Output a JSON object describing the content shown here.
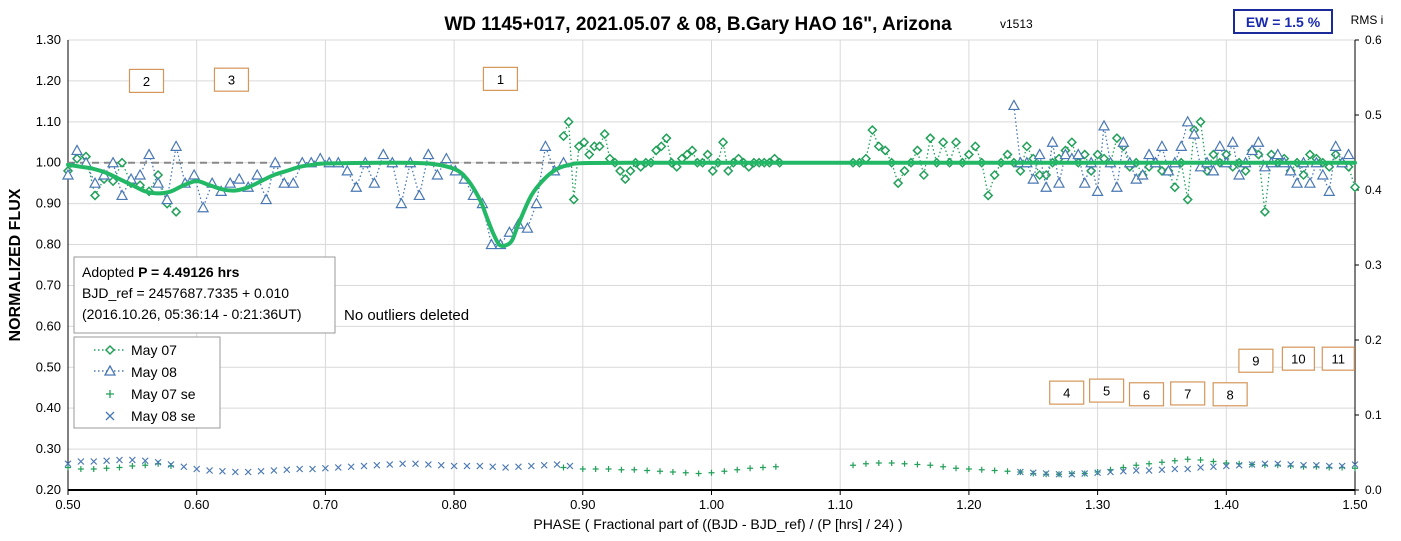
{
  "chart_data": {
    "type": "scatter",
    "title": "WD 1145+017, 2021.05.07 & 08, B.Gary HAO 16\", Arizona",
    "version": "v1513",
    "xlabel": "PHASE ( Fractional part of ((BJD - BJD_ref) / (P [hrs] / 24) )",
    "ylabel": "NORMALIZED FLUX",
    "y2label": "RMS i",
    "xlim": [
      0.5,
      1.5
    ],
    "ylim": [
      0.2,
      1.3
    ],
    "y2lim": [
      0.0,
      0.6
    ],
    "xticks": [
      "0.50",
      "0.60",
      "0.70",
      "0.80",
      "0.90",
      "1.00",
      "1.10",
      "1.20",
      "1.30",
      "1.40",
      "1.50"
    ],
    "yticks": [
      "0.20",
      "0.30",
      "0.40",
      "0.50",
      "0.60",
      "0.70",
      "0.80",
      "0.90",
      "1.00",
      "1.10",
      "1.20",
      "1.30"
    ],
    "y2ticks": [
      "0.0",
      "0.1",
      "0.2",
      "0.3",
      "0.4",
      "0.5",
      "0.6"
    ],
    "grid": true,
    "ew_box": "EW = 1.5 %",
    "info_box": {
      "line1_prefix": "Adopted ",
      "line1_bold": "P = 4.49126 hrs",
      "line2": "BJD_ref = 2457687.7335 + 0.010",
      "line3": "(2016.10.26, 05:36:14 - 0:21:36UT)"
    },
    "note": "No outliers deleted",
    "dip_labels": [
      {
        "label": "1",
        "x": 0.836,
        "y": 1.205
      },
      {
        "label": "2",
        "x": 0.561,
        "y": 1.2
      },
      {
        "label": "3",
        "x": 0.627,
        "y": 1.203
      },
      {
        "label": "4",
        "x": 1.276,
        "y": 0.438
      },
      {
        "label": "5",
        "x": 1.307,
        "y": 0.443
      },
      {
        "label": "6",
        "x": 1.338,
        "y": 0.434
      },
      {
        "label": "7",
        "x": 1.37,
        "y": 0.436
      },
      {
        "label": "8",
        "x": 1.403,
        "y": 0.434
      },
      {
        "label": "9",
        "x": 1.423,
        "y": 0.516
      },
      {
        "label": "10",
        "x": 1.456,
        "y": 0.521
      },
      {
        "label": "11",
        "x": 1.487,
        "y": 0.521
      }
    ],
    "legend": {
      "placement": "left",
      "entries": [
        "May 07",
        "May 08",
        "May 07 se",
        "May 08 se"
      ]
    },
    "colors": {
      "may07": "#22a05a",
      "may08": "#4a78b4",
      "model": "#22b866",
      "reference": "#888888",
      "label_box": "#d4965a",
      "ew_border": "#1a2a9a",
      "ew_text": "#1a2ab0"
    },
    "model_curve": {
      "name": "",
      "x": [
        0.5,
        0.51,
        0.52,
        0.53,
        0.54,
        0.55,
        0.56,
        0.57,
        0.58,
        0.59,
        0.6,
        0.61,
        0.62,
        0.63,
        0.64,
        0.65,
        0.66,
        0.67,
        0.68,
        0.69,
        0.7,
        0.75,
        0.78,
        0.8,
        0.81,
        0.82,
        0.825,
        0.83,
        0.835,
        0.84,
        0.845,
        0.85,
        0.86,
        0.87,
        0.88,
        0.89,
        0.9,
        0.95,
        1.0,
        1.1,
        1.2,
        1.3,
        1.4,
        1.5
      ],
      "y": [
        0.995,
        0.99,
        0.985,
        0.975,
        0.96,
        0.945,
        0.93,
        0.925,
        0.93,
        0.945,
        0.955,
        0.945,
        0.935,
        0.932,
        0.94,
        0.955,
        0.97,
        0.98,
        0.99,
        0.995,
        0.998,
        1.0,
        0.998,
        0.985,
        0.96,
        0.91,
        0.87,
        0.83,
        0.8,
        0.798,
        0.81,
        0.85,
        0.92,
        0.96,
        0.985,
        0.995,
        0.999,
        1.0,
        1.0,
        1.0,
        1.0,
        1.0,
        1.0,
        1.0
      ]
    },
    "reference_line": {
      "y": 1.0,
      "x": [
        0.5,
        1.5
      ]
    },
    "series": [
      {
        "name": "May 07",
        "marker": "diamond",
        "x": [
          0.5,
          0.507,
          0.514,
          0.521,
          0.528,
          0.535,
          0.542,
          0.549,
          0.556,
          0.563,
          0.57,
          0.577,
          0.584,
          0.885,
          0.889,
          0.893,
          0.897,
          0.901,
          0.905,
          0.909,
          0.913,
          0.917,
          0.921,
          0.925,
          0.929,
          0.933,
          0.937,
          0.941,
          0.945,
          0.949,
          0.953,
          0.957,
          0.961,
          0.965,
          0.969,
          0.973,
          0.977,
          0.981,
          0.985,
          0.989,
          0.993,
          0.997,
          1.001,
          1.005,
          1.009,
          1.013,
          1.017,
          1.021,
          1.025,
          1.029,
          1.033,
          1.037,
          1.041,
          1.045,
          1.049,
          1.053,
          1.11,
          1.115,
          1.12,
          1.125,
          1.13,
          1.135,
          1.14,
          1.145,
          1.15,
          1.155,
          1.16,
          1.165,
          1.17,
          1.175,
          1.18,
          1.185,
          1.19,
          1.195,
          1.2,
          1.205,
          1.21,
          1.215,
          1.22,
          1.225,
          1.23,
          1.235,
          1.24,
          1.245,
          1.25,
          1.255,
          1.26,
          1.265,
          1.27,
          1.275,
          1.28,
          1.285,
          1.29,
          1.295,
          1.3,
          1.305,
          1.31,
          1.315,
          1.32,
          1.325,
          1.33,
          1.335,
          1.34,
          1.345,
          1.35,
          1.355,
          1.36,
          1.365,
          1.37,
          1.375,
          1.38,
          1.385,
          1.39,
          1.395,
          1.4,
          1.405,
          1.41,
          1.415,
          1.42,
          1.425,
          1.43,
          1.435,
          1.44,
          1.445,
          1.45,
          1.455,
          1.46,
          1.465,
          1.47,
          1.475,
          1.48,
          1.485,
          1.49,
          1.495,
          1.5
        ],
        "y": [
          0.98,
          1.01,
          1.015,
          0.92,
          0.96,
          0.955,
          1.0,
          0.95,
          0.945,
          0.93,
          0.97,
          0.9,
          0.88,
          1.065,
          1.1,
          0.91,
          1.04,
          1.05,
          1.02,
          1.04,
          1.04,
          1.07,
          1.01,
          1.0,
          0.98,
          0.96,
          0.98,
          1.0,
          0.99,
          1.0,
          1.0,
          1.03,
          1.04,
          1.06,
          1.0,
          0.99,
          1.01,
          1.02,
          1.03,
          1.0,
          1.0,
          1.02,
          0.98,
          1.0,
          1.05,
          0.98,
          1.0,
          1.01,
          1.0,
          0.99,
          1.0,
          1.0,
          1.0,
          1.0,
          1.01,
          1.0,
          1.0,
          1.0,
          1.01,
          1.08,
          1.04,
          1.03,
          1.0,
          0.95,
          0.98,
          1.0,
          1.03,
          0.97,
          1.06,
          1.0,
          1.05,
          1.0,
          1.05,
          1.0,
          1.02,
          1.04,
          1.0,
          0.92,
          0.97,
          1.0,
          1.02,
          1.0,
          0.98,
          1.04,
          1.01,
          0.97,
          0.97,
          1.0,
          1.01,
          1.03,
          1.05,
          1.0,
          1.02,
          0.98,
          1.02,
          1.01,
          1.0,
          1.06,
          1.04,
          0.99,
          1.0,
          0.97,
          0.99,
          1.0,
          0.98,
          0.98,
          0.94,
          1.0,
          0.91,
          1.08,
          1.1,
          0.98,
          1.02,
          1.0,
          1.02,
          0.99,
          1.0,
          0.98,
          1.03,
          1.02,
          0.88,
          1.02,
          1.0,
          1.01,
          0.98,
          1.0,
          0.97,
          1.02,
          1.01,
          1.0,
          0.99,
          1.02,
          1.0,
          0.99,
          0.94
        ]
      },
      {
        "name": "May 08",
        "marker": "triangle",
        "x": [
          0.5,
          0.507,
          0.514,
          0.521,
          0.528,
          0.535,
          0.542,
          0.549,
          0.556,
          0.563,
          0.57,
          0.577,
          0.584,
          0.591,
          0.598,
          0.605,
          0.612,
          0.619,
          0.626,
          0.633,
          0.64,
          0.647,
          0.654,
          0.661,
          0.668,
          0.675,
          0.682,
          0.689,
          0.696,
          0.703,
          0.71,
          0.717,
          0.724,
          0.731,
          0.738,
          0.745,
          0.752,
          0.759,
          0.766,
          0.773,
          0.78,
          0.787,
          0.794,
          0.801,
          0.808,
          0.815,
          0.822,
          0.829,
          0.836,
          0.843,
          0.85,
          0.857,
          0.864,
          0.871,
          0.878,
          0.885,
          1.235,
          1.24,
          1.245,
          1.25,
          1.255,
          1.26,
          1.265,
          1.27,
          1.275,
          1.28,
          1.285,
          1.29,
          1.295,
          1.3,
          1.305,
          1.31,
          1.315,
          1.32,
          1.325,
          1.33,
          1.335,
          1.34,
          1.345,
          1.35,
          1.355,
          1.36,
          1.365,
          1.37,
          1.375,
          1.38,
          1.385,
          1.39,
          1.395,
          1.4,
          1.405,
          1.41,
          1.415,
          1.42,
          1.425,
          1.43,
          1.435,
          1.44,
          1.445,
          1.45,
          1.455,
          1.46,
          1.465,
          1.47,
          1.475,
          1.48,
          1.485,
          1.49,
          1.495
        ],
        "y": [
          0.97,
          1.03,
          1.0,
          0.95,
          0.97,
          1.0,
          0.92,
          0.96,
          0.97,
          1.02,
          0.95,
          0.91,
          1.04,
          0.95,
          0.97,
          0.89,
          0.95,
          0.93,
          0.95,
          0.96,
          0.94,
          0.97,
          0.91,
          1.0,
          0.95,
          0.95,
          1.0,
          1.0,
          1.01,
          1.0,
          1.0,
          0.98,
          0.94,
          1.0,
          0.95,
          1.02,
          1.0,
          0.9,
          1.0,
          0.92,
          1.02,
          0.97,
          1.01,
          0.98,
          0.96,
          0.92,
          0.9,
          0.8,
          0.8,
          0.83,
          0.85,
          0.84,
          0.9,
          1.04,
          0.98,
          1.0,
          1.14,
          1.0,
          1.0,
          0.96,
          1.02,
          0.94,
          1.05,
          0.95,
          1.02,
          1.01,
          1.02,
          0.95,
          1.0,
          0.93,
          1.09,
          1.0,
          0.94,
          1.05,
          1.0,
          0.96,
          0.97,
          1.02,
          1.0,
          1.04,
          0.98,
          1.0,
          1.04,
          1.1,
          1.07,
          0.99,
          1.0,
          0.98,
          1.04,
          1.0,
          1.05,
          0.97,
          1.0,
          1.03,
          1.05,
          0.99,
          1.0,
          1.02,
          1.0,
          0.98,
          0.95,
          1.0,
          0.95,
          1.0,
          0.97,
          0.93,
          1.04,
          1.0,
          1.02
        ]
      },
      {
        "name": "May 07 se",
        "marker": "plus",
        "axis": "y2",
        "x": [
          0.5,
          0.51,
          0.52,
          0.53,
          0.54,
          0.55,
          0.56,
          0.57,
          0.58,
          0.885,
          0.9,
          0.91,
          0.92,
          0.93,
          0.94,
          0.95,
          0.96,
          0.97,
          0.98,
          0.99,
          1.0,
          1.01,
          1.02,
          1.03,
          1.04,
          1.05,
          1.11,
          1.12,
          1.13,
          1.14,
          1.15,
          1.16,
          1.17,
          1.18,
          1.19,
          1.2,
          1.21,
          1.22,
          1.23,
          1.24,
          1.25,
          1.26,
          1.27,
          1.28,
          1.29,
          1.3,
          1.31,
          1.32,
          1.33,
          1.34,
          1.35,
          1.36,
          1.37,
          1.38,
          1.39,
          1.4,
          1.41,
          1.42,
          1.43,
          1.44,
          1.45,
          1.46,
          1.47,
          1.48,
          1.49,
          1.5
        ],
        "y": [
          0.03,
          0.028,
          0.028,
          0.029,
          0.03,
          0.032,
          0.033,
          0.035,
          0.032,
          0.03,
          0.028,
          0.028,
          0.028,
          0.027,
          0.027,
          0.026,
          0.025,
          0.024,
          0.023,
          0.022,
          0.023,
          0.025,
          0.027,
          0.029,
          0.03,
          0.031,
          0.033,
          0.035,
          0.036,
          0.036,
          0.035,
          0.034,
          0.033,
          0.031,
          0.029,
          0.028,
          0.027,
          0.026,
          0.025,
          0.024,
          0.022,
          0.021,
          0.021,
          0.022,
          0.022,
          0.024,
          0.027,
          0.03,
          0.033,
          0.035,
          0.037,
          0.039,
          0.041,
          0.04,
          0.038,
          0.036,
          0.035,
          0.034,
          0.033,
          0.033,
          0.032,
          0.031,
          0.031,
          0.03,
          0.03,
          0.029
        ]
      },
      {
        "name": "May 08 se",
        "marker": "x",
        "axis": "y2",
        "x": [
          0.5,
          0.51,
          0.52,
          0.53,
          0.54,
          0.55,
          0.56,
          0.57,
          0.58,
          0.59,
          0.6,
          0.61,
          0.62,
          0.63,
          0.64,
          0.65,
          0.66,
          0.67,
          0.68,
          0.69,
          0.7,
          0.71,
          0.72,
          0.73,
          0.74,
          0.75,
          0.76,
          0.77,
          0.78,
          0.79,
          0.8,
          0.81,
          0.82,
          0.83,
          0.84,
          0.85,
          0.86,
          0.87,
          0.88,
          0.89,
          1.24,
          1.25,
          1.26,
          1.27,
          1.28,
          1.29,
          1.3,
          1.31,
          1.32,
          1.33,
          1.34,
          1.35,
          1.36,
          1.37,
          1.38,
          1.39,
          1.4,
          1.41,
          1.42,
          1.43,
          1.44,
          1.45,
          1.46,
          1.47,
          1.48,
          1.49,
          1.5
        ],
        "y": [
          0.035,
          0.038,
          0.038,
          0.039,
          0.04,
          0.04,
          0.039,
          0.037,
          0.034,
          0.031,
          0.028,
          0.026,
          0.025,
          0.024,
          0.024,
          0.025,
          0.026,
          0.027,
          0.028,
          0.028,
          0.029,
          0.03,
          0.031,
          0.032,
          0.033,
          0.034,
          0.035,
          0.035,
          0.034,
          0.033,
          0.032,
          0.032,
          0.032,
          0.031,
          0.03,
          0.031,
          0.032,
          0.033,
          0.034,
          0.032,
          0.024,
          0.023,
          0.022,
          0.021,
          0.021,
          0.022,
          0.023,
          0.024,
          0.025,
          0.026,
          0.026,
          0.027,
          0.028,
          0.028,
          0.03,
          0.031,
          0.032,
          0.033,
          0.034,
          0.035,
          0.035,
          0.034,
          0.033,
          0.033,
          0.032,
          0.032,
          0.034
        ]
      }
    ]
  }
}
